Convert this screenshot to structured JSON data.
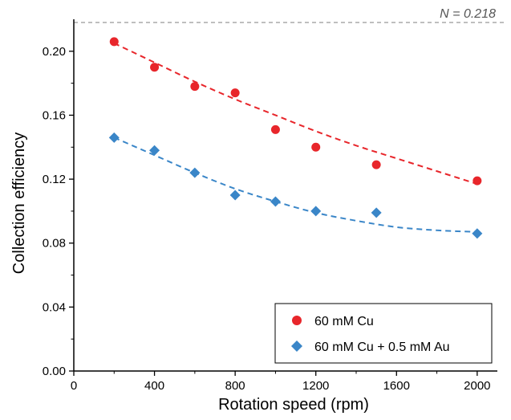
{
  "chart_data": {
    "type": "scatter",
    "xlabel": "Rotation speed (rpm)",
    "ylabel": "Collection efficiency",
    "xlim": [
      0,
      2100
    ],
    "ylim": [
      0,
      0.22
    ],
    "x_ticks": [
      0,
      400,
      800,
      1200,
      1600,
      2000
    ],
    "x_tick_labels": [
      "0",
      "400",
      "800",
      "1200",
      "1600",
      "2000"
    ],
    "y_ticks": [
      0,
      0.04,
      0.08,
      0.12,
      0.16,
      0.2
    ],
    "y_tick_labels": [
      "0.00",
      "0.04",
      "0.08",
      "0.12",
      "0.16",
      "0.20"
    ],
    "grid": false,
    "legend_position": "bottom-right",
    "reference_line": {
      "y": 0.218,
      "label": "N = 0.218",
      "color": "#999999"
    },
    "series": [
      {
        "name": "60 mM Cu",
        "marker": "circle",
        "color": "#e8262b",
        "x": [
          200,
          400,
          600,
          800,
          1000,
          1200,
          1500,
          2000
        ],
        "y": [
          0.206,
          0.19,
          0.178,
          0.174,
          0.151,
          0.14,
          0.129,
          0.119
        ],
        "fit": {
          "style": "dashed",
          "x": [
            200,
            400,
            600,
            800,
            1000,
            1200,
            1400,
            1600,
            1800,
            2000
          ],
          "y": [
            0.205,
            0.193,
            0.181,
            0.17,
            0.16,
            0.15,
            0.141,
            0.133,
            0.125,
            0.117
          ]
        }
      },
      {
        "name": "60 mM Cu + 0.5 mM Au",
        "marker": "diamond",
        "color": "#3a86c8",
        "x": [
          200,
          400,
          600,
          800,
          1000,
          1200,
          1500,
          2000
        ],
        "y": [
          0.146,
          0.138,
          0.124,
          0.11,
          0.106,
          0.1,
          0.099,
          0.086
        ],
        "fit": {
          "style": "dashed",
          "x": [
            200,
            400,
            600,
            800,
            1000,
            1200,
            1400,
            1600,
            1800,
            2000
          ],
          "y": [
            0.146,
            0.135,
            0.124,
            0.114,
            0.106,
            0.099,
            0.094,
            0.09,
            0.088,
            0.087
          ]
        }
      }
    ]
  }
}
